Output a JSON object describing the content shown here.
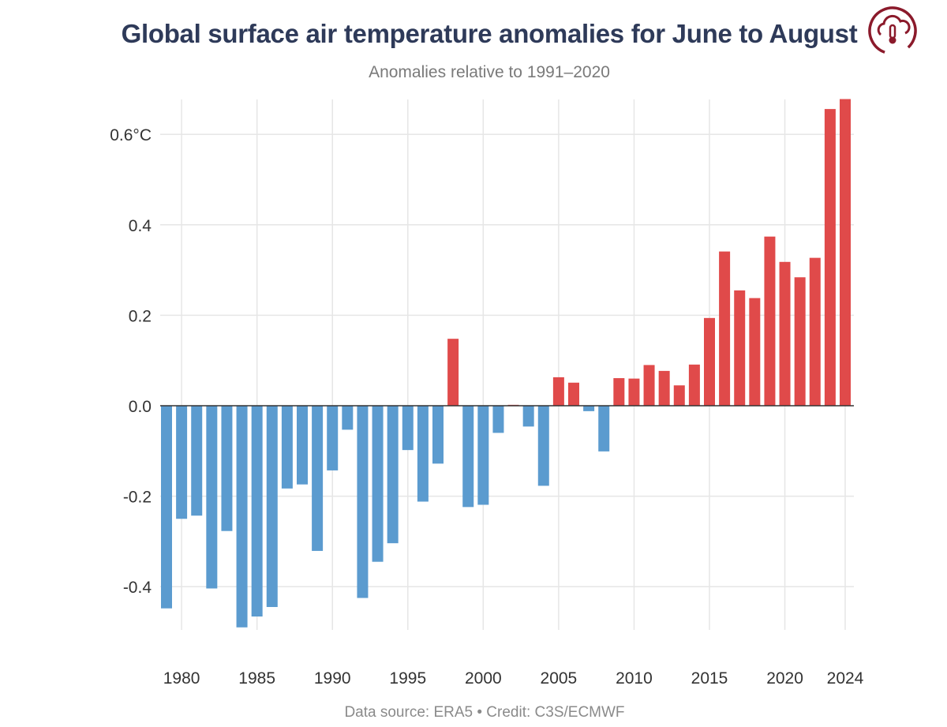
{
  "title": "Global surface air temperature anomalies for June to August",
  "subtitle": "Anomalies relative to 1991–2020",
  "caption": "Data source: ERA5 • Credit: C3S/ECMWF",
  "logo_icon": "cloud-thermometer-icon",
  "colors": {
    "positive": "#e04a4a",
    "negative": "#5b9bcf",
    "grid": "#e6e6e6",
    "zero_line": "#333333"
  },
  "chart_data": {
    "type": "bar",
    "categories": [
      1979,
      1980,
      1981,
      1982,
      1983,
      1984,
      1985,
      1986,
      1987,
      1988,
      1989,
      1990,
      1991,
      1992,
      1993,
      1994,
      1995,
      1996,
      1997,
      1998,
      1999,
      2000,
      2001,
      2002,
      2003,
      2004,
      2005,
      2006,
      2007,
      2008,
      2009,
      2010,
      2011,
      2012,
      2013,
      2014,
      2015,
      2016,
      2017,
      2018,
      2019,
      2020,
      2021,
      2022,
      2023,
      2024
    ],
    "values": [
      -0.448,
      -0.25,
      -0.243,
      -0.404,
      -0.277,
      -0.49,
      -0.466,
      -0.445,
      -0.183,
      -0.174,
      -0.321,
      -0.143,
      -0.053,
      -0.425,
      -0.345,
      -0.304,
      -0.098,
      -0.212,
      -0.128,
      0.148,
      -0.224,
      -0.219,
      -0.06,
      0.002,
      -0.046,
      -0.177,
      0.063,
      0.051,
      -0.012,
      -0.101,
      0.061,
      0.06,
      0.09,
      0.077,
      0.045,
      0.091,
      0.194,
      0.341,
      0.255,
      0.238,
      0.374,
      0.318,
      0.284,
      0.327,
      0.656,
      0.678
    ],
    "ylim": [
      -0.5,
      0.68
    ],
    "yticks": [
      {
        "value": 0.6,
        "label": "0.6°C"
      },
      {
        "value": 0.4,
        "label": "0.4"
      },
      {
        "value": 0.2,
        "label": "0.2"
      },
      {
        "value": 0.0,
        "label": "0.0"
      },
      {
        "value": -0.2,
        "label": "-0.2"
      },
      {
        "value": -0.4,
        "label": "-0.4"
      }
    ],
    "xticks": [
      {
        "value": 1980,
        "label": "1980"
      },
      {
        "value": 1985,
        "label": "1985"
      },
      {
        "value": 1990,
        "label": "1990"
      },
      {
        "value": 1995,
        "label": "1995"
      },
      {
        "value": 2000,
        "label": "2000"
      },
      {
        "value": 2005,
        "label": "2005"
      },
      {
        "value": 2010,
        "label": "2010"
      },
      {
        "value": 2015,
        "label": "2015"
      },
      {
        "value": 2020,
        "label": "2020"
      },
      {
        "value": 2024,
        "label": "2024"
      }
    ],
    "grid": true,
    "legend": "none"
  }
}
